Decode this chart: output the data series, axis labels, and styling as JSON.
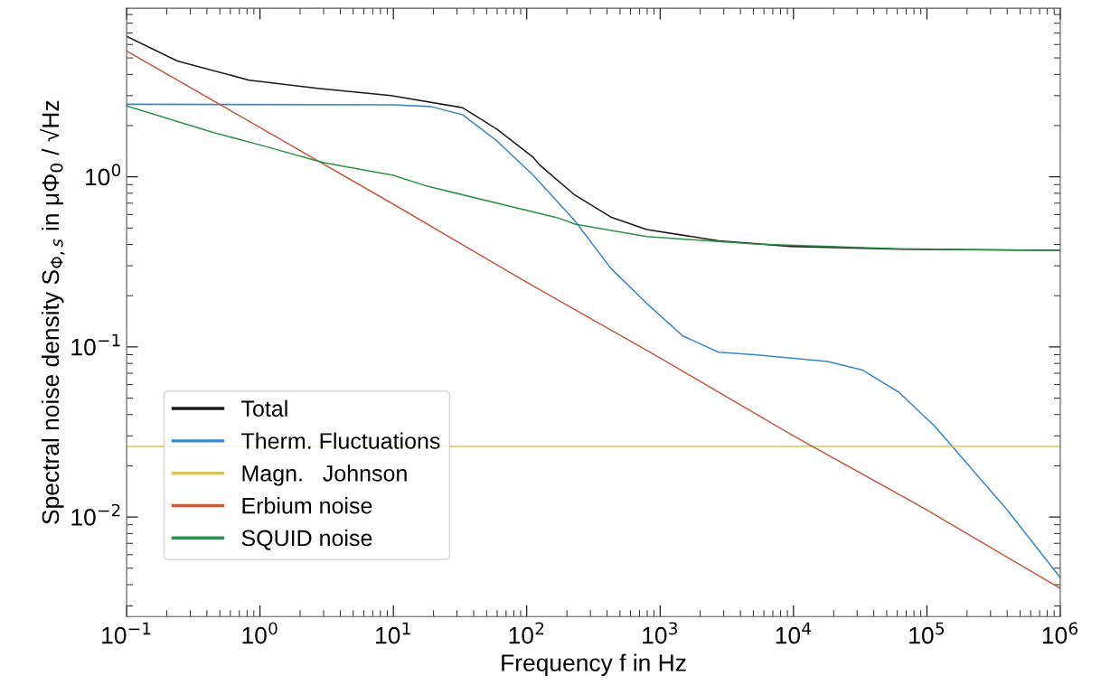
{
  "chart_data": {
    "type": "line",
    "xlabel": "Frequency f in Hz",
    "ylabel": "Spectral noise density S$_{Φ,s}$ in μΦ$_{0}$ / √Hz",
    "log": "xy",
    "grid": false,
    "legend": "bottom left",
    "marker": "none",
    "line_style": "solid",
    "xlim": [
      0.1,
      1000000
    ],
    "ylim": [
      0.0026,
      9.8
    ],
    "xticks": [
      {
        "value": 0.1,
        "label": "10$^{−1}$"
      },
      {
        "value": 1,
        "label": "10$^{0}$"
      },
      {
        "value": 10,
        "label": "10$^{1}$"
      },
      {
        "value": 100,
        "label": "10$^{2}$"
      },
      {
        "value": 1000,
        "label": "10$^{3}$"
      },
      {
        "value": 10000,
        "label": "10$^{4}$"
      },
      {
        "value": 100000,
        "label": "10$^{5}$"
      },
      {
        "value": 1000000,
        "label": "10$^{6}$"
      }
    ],
    "yticks": [
      {
        "value": 0.01,
        "label": "10$^{−2}$"
      },
      {
        "value": 0.1,
        "label": "10$^{−1}$"
      },
      {
        "value": 1,
        "label": "10$^{0}$"
      }
    ],
    "series": [
      {
        "name": "Total",
        "color": "#1a1a1a",
        "x": [
          0.1,
          0.24,
          0.83,
          2.8,
          9.6,
          33,
          60,
          112,
          124,
          230,
          427,
          794,
          2750,
          9500,
          62000,
          1000000
        ],
        "values": [
          6.7,
          4.8,
          3.7,
          3.3,
          3.0,
          2.55,
          1.9,
          1.3,
          1.18,
          0.78,
          0.58,
          0.49,
          0.42,
          0.39,
          0.375,
          0.37
        ]
      },
      {
        "name": "Therm. Fluctuations",
        "color": "#3a87c8",
        "x": [
          0.1,
          10,
          19,
          33,
          60,
          112,
          230,
          427,
          794,
          1480,
          2750,
          5100,
          18000,
          33000,
          62000,
          115000,
          155000,
          400000,
          1000000
        ],
        "values": [
          2.67,
          2.65,
          2.59,
          2.32,
          1.62,
          1.02,
          0.55,
          0.29,
          0.18,
          0.116,
          0.093,
          0.09,
          0.082,
          0.073,
          0.054,
          0.034,
          0.026,
          0.011,
          0.0044
        ]
      },
      {
        "name": "Magn.   Johnson",
        "color": "#d2c65a",
        "x": [
          0.1,
          1000000
        ],
        "values": [
          0.026,
          0.026
        ]
      },
      {
        "name": "Erbium noise",
        "color": "#c9593f",
        "x": [
          0.1,
          1,
          10,
          100,
          1000,
          10000,
          100000,
          1000000
        ],
        "values": [
          5.5,
          1.95,
          0.69,
          0.24,
          0.086,
          0.03,
          0.011,
          0.0038
        ]
      },
      {
        "name": "SQUID noise",
        "color": "#2f9148",
        "x": [
          0.1,
          0.45,
          1,
          3,
          10,
          18,
          170,
          230,
          794,
          5100,
          62000,
          1000000
        ],
        "values": [
          2.61,
          1.82,
          1.54,
          1.21,
          1.02,
          0.88,
          0.575,
          0.527,
          0.445,
          0.403,
          0.378,
          0.369
        ]
      }
    ]
  }
}
